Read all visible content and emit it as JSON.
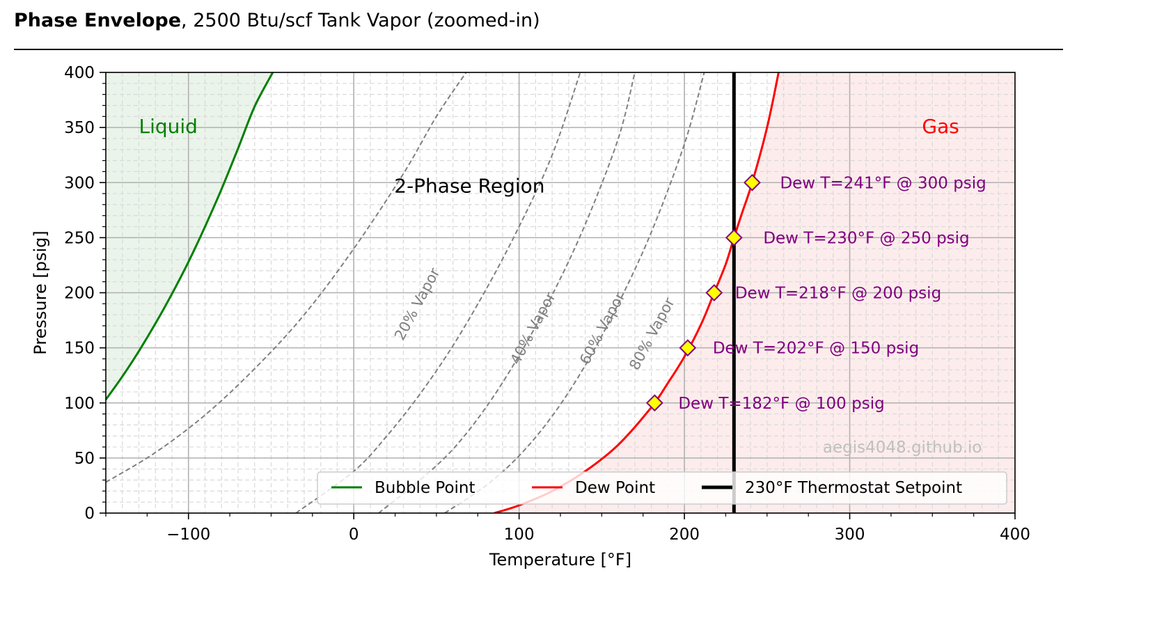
{
  "title": {
    "bold": "Phase Envelope",
    "rest": ", 2500 Btu/scf Tank Vapor (zoomed-in)"
  },
  "colors": {
    "bubble": "#007f00",
    "dew": "#ff0000",
    "setpoint": "#000000",
    "quality": "#808080",
    "marker_fill": "#ffff00",
    "marker_edge": "#7f007f",
    "annotation": "#800080",
    "liquid_fill": "#eaf4ea",
    "gas_fill": "#fdecec",
    "watermark": "#bfbfbf"
  },
  "chart_data": {
    "type": "line",
    "xlabel": "Temperature [°F]",
    "ylabel": "Pressure [psig]",
    "xlim": [
      -150,
      400
    ],
    "ylim": [
      0,
      400
    ],
    "x_ticks": [
      -100,
      0,
      100,
      200,
      300,
      400
    ],
    "x_tick_labels": [
      "−100",
      "0",
      "100",
      "200",
      "300",
      "400"
    ],
    "y_ticks": [
      0,
      50,
      100,
      150,
      200,
      250,
      300,
      350,
      400
    ],
    "y_tick_labels": [
      "0",
      "50",
      "100",
      "150",
      "200",
      "250",
      "300",
      "350",
      "400"
    ],
    "grid": "major solid, minor dashed",
    "series": [
      {
        "name": "Bubble Point",
        "style": "solid",
        "x": [
          -150,
          -140,
          -130,
          -120,
          -110,
          -100,
          -90,
          -80,
          -70,
          -60,
          -49
        ],
        "y": [
          103,
          124,
          147,
          172,
          199,
          228,
          260,
          294,
          331,
          369,
          400
        ]
      },
      {
        "name": "Dew Point",
        "style": "solid",
        "x": [
          85,
          100,
          120,
          140,
          160,
          180,
          190,
          200,
          210,
          218,
          225,
          230,
          235,
          241,
          250,
          257
        ],
        "y": [
          0,
          7,
          20,
          38,
          62,
          96,
          118,
          142,
          171,
          200,
          226,
          250,
          273,
          300,
          350,
          400
        ]
      },
      {
        "name": "230°F Thermostat Setpoint",
        "style": "solid",
        "x": [
          230,
          230
        ],
        "y": [
          0,
          400
        ]
      }
    ],
    "quality_lines": [
      {
        "label": "20% Vapor",
        "x": [
          -150,
          -120,
          -90,
          -60,
          -30,
          0,
          30,
          50,
          68
        ],
        "y": [
          28,
          55,
          89,
          131,
          180,
          240,
          308,
          360,
          400
        ]
      },
      {
        "label": "40% Vapor",
        "x": [
          -35,
          0,
          20,
          40,
          60,
          80,
          100,
          120,
          137
        ],
        "y": [
          0,
          38,
          70,
          108,
          152,
          203,
          260,
          325,
          400
        ]
      },
      {
        "label": "60% Vapor",
        "x": [
          15,
          40,
          60,
          80,
          100,
          120,
          140,
          160,
          170
        ],
        "y": [
          0,
          30,
          58,
          96,
          143,
          198,
          262,
          340,
          400
        ]
      },
      {
        "label": "80% Vapor",
        "x": [
          55,
          80,
          100,
          120,
          140,
          160,
          180,
          200,
          212
        ],
        "y": [
          0,
          25,
          52,
          88,
          134,
          190,
          255,
          335,
          400
        ]
      }
    ],
    "markers": [
      {
        "x": 182,
        "y": 100,
        "label": "Dew T=182°F @ 100 psig"
      },
      {
        "x": 202,
        "y": 150,
        "label": "Dew T=202°F @ 150 psig"
      },
      {
        "x": 218,
        "y": 200,
        "label": "Dew T=218°F @ 200 psig"
      },
      {
        "x": 230,
        "y": 250,
        "label": "Dew T=230°F @ 250 psig"
      },
      {
        "x": 241,
        "y": 300,
        "label": "Dew T=241°F @ 300 psig"
      }
    ],
    "region_labels": {
      "liquid": "Liquid",
      "two_phase": "2-Phase Region",
      "gas": "Gas"
    },
    "legend": {
      "placement": "lower right",
      "entries": [
        "Bubble Point",
        "Dew Point",
        "230°F Thermostat Setpoint"
      ]
    },
    "watermark": "aegis4048.github.io"
  }
}
